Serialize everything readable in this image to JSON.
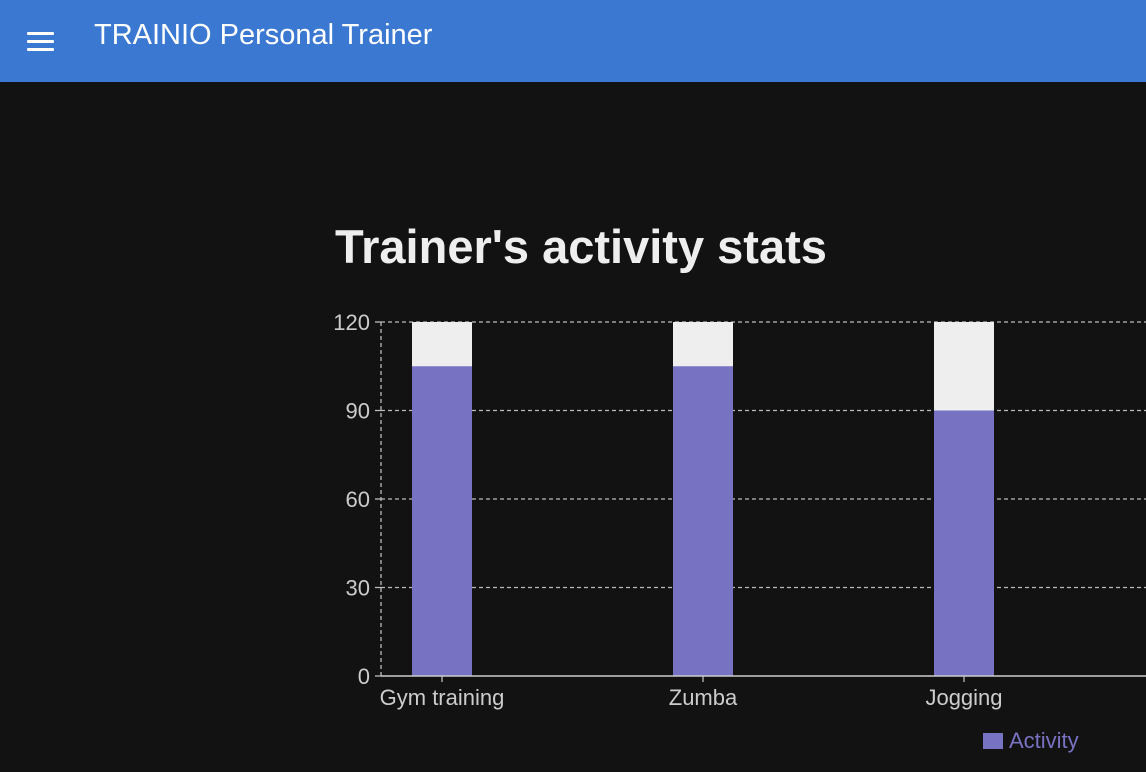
{
  "appbar": {
    "title": "TRAINIO Personal Trainer",
    "menu_icon": "hamburger-menu-icon",
    "color": "#3a78d1"
  },
  "page": {
    "background": "#121212"
  },
  "chart_data": {
    "type": "bar",
    "title": "Trainer's activity stats",
    "xlabel": "",
    "ylabel": "",
    "categories": [
      "Gym training",
      "Zumba",
      "Jogging"
    ],
    "series": [
      {
        "name": "Activity",
        "values": [
          105,
          105,
          90
        ],
        "color": "#7872c2"
      }
    ],
    "background_bar_value": 120,
    "background_bar_color": "#eeeeee",
    "ylim": [
      0,
      120
    ],
    "yticks": [
      0,
      30,
      60,
      90,
      120
    ],
    "grid": true,
    "legend": "bottom-right"
  }
}
